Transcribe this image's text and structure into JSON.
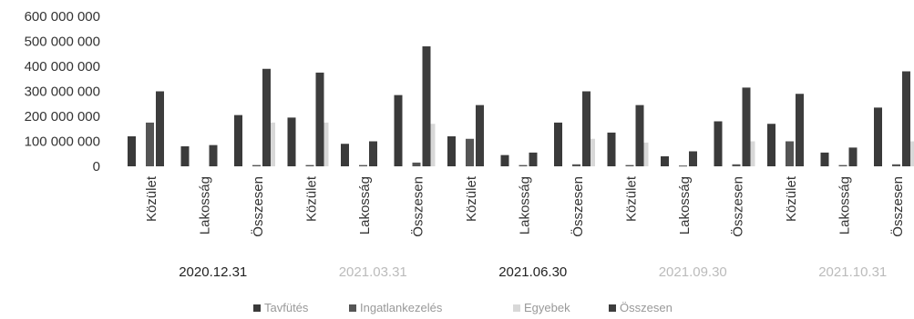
{
  "chart_data": {
    "type": "bar",
    "ylim": [
      0,
      600000000
    ],
    "yticks": [
      "600 000 000",
      "500 000 000",
      "400 000 000",
      "300 000 000",
      "200 000 000",
      "100 000 000",
      "0"
    ],
    "groups": [
      {
        "label": "2020.12.31",
        "categories": [
          "Közület",
          "Lakosság",
          "Összesen"
        ]
      },
      {
        "label": "2021.03.31",
        "categories": [
          "Közület",
          "Lakosság",
          "Összesen"
        ]
      },
      {
        "label": "2021.06.30",
        "categories": [
          "Közület",
          "Lakosság",
          "Összesen"
        ]
      },
      {
        "label": "2021.09.30",
        "categories": [
          "Közület",
          "Lakosság",
          "Összesen"
        ]
      },
      {
        "label": "2021.10.31",
        "categories": [
          "Közület",
          "Lakosság",
          "Összesen"
        ]
      }
    ],
    "series": [
      {
        "name": "Tavfütés",
        "color": "#3a3a3a",
        "values": [
          120000000,
          80000000,
          205000000,
          195000000,
          90000000,
          285000000,
          120000000,
          45000000,
          175000000,
          135000000,
          40000000,
          180000000,
          170000000,
          55000000,
          235000000
        ]
      },
      {
        "name": "Ingatlankezelés",
        "color": "#555555",
        "values": [
          175000000,
          0,
          5000000,
          5000000,
          5000000,
          15000000,
          110000000,
          5000000,
          8000000,
          5000000,
          3000000,
          8000000,
          100000000,
          5000000,
          8000000
        ]
      },
      {
        "name": "Egyebek",
        "color": "#d8d8d8",
        "values": [
          0,
          0,
          175000000,
          175000000,
          0,
          170000000,
          0,
          0,
          110000000,
          95000000,
          0,
          100000000,
          0,
          0,
          100000000
        ]
      },
      {
        "name": "Összesen",
        "color": "#3d3d3d",
        "values": [
          300000000,
          85000000,
          390000000,
          375000000,
          100000000,
          480000000,
          245000000,
          55000000,
          300000000,
          245000000,
          60000000,
          315000000,
          290000000,
          75000000,
          380000000
        ]
      }
    ],
    "legend_position": "bottom",
    "grid": false,
    "group_label_colors": [
      "#222222",
      "#bbbbbb",
      "#222222",
      "#bbbbbb",
      "#bbbbbb"
    ]
  }
}
